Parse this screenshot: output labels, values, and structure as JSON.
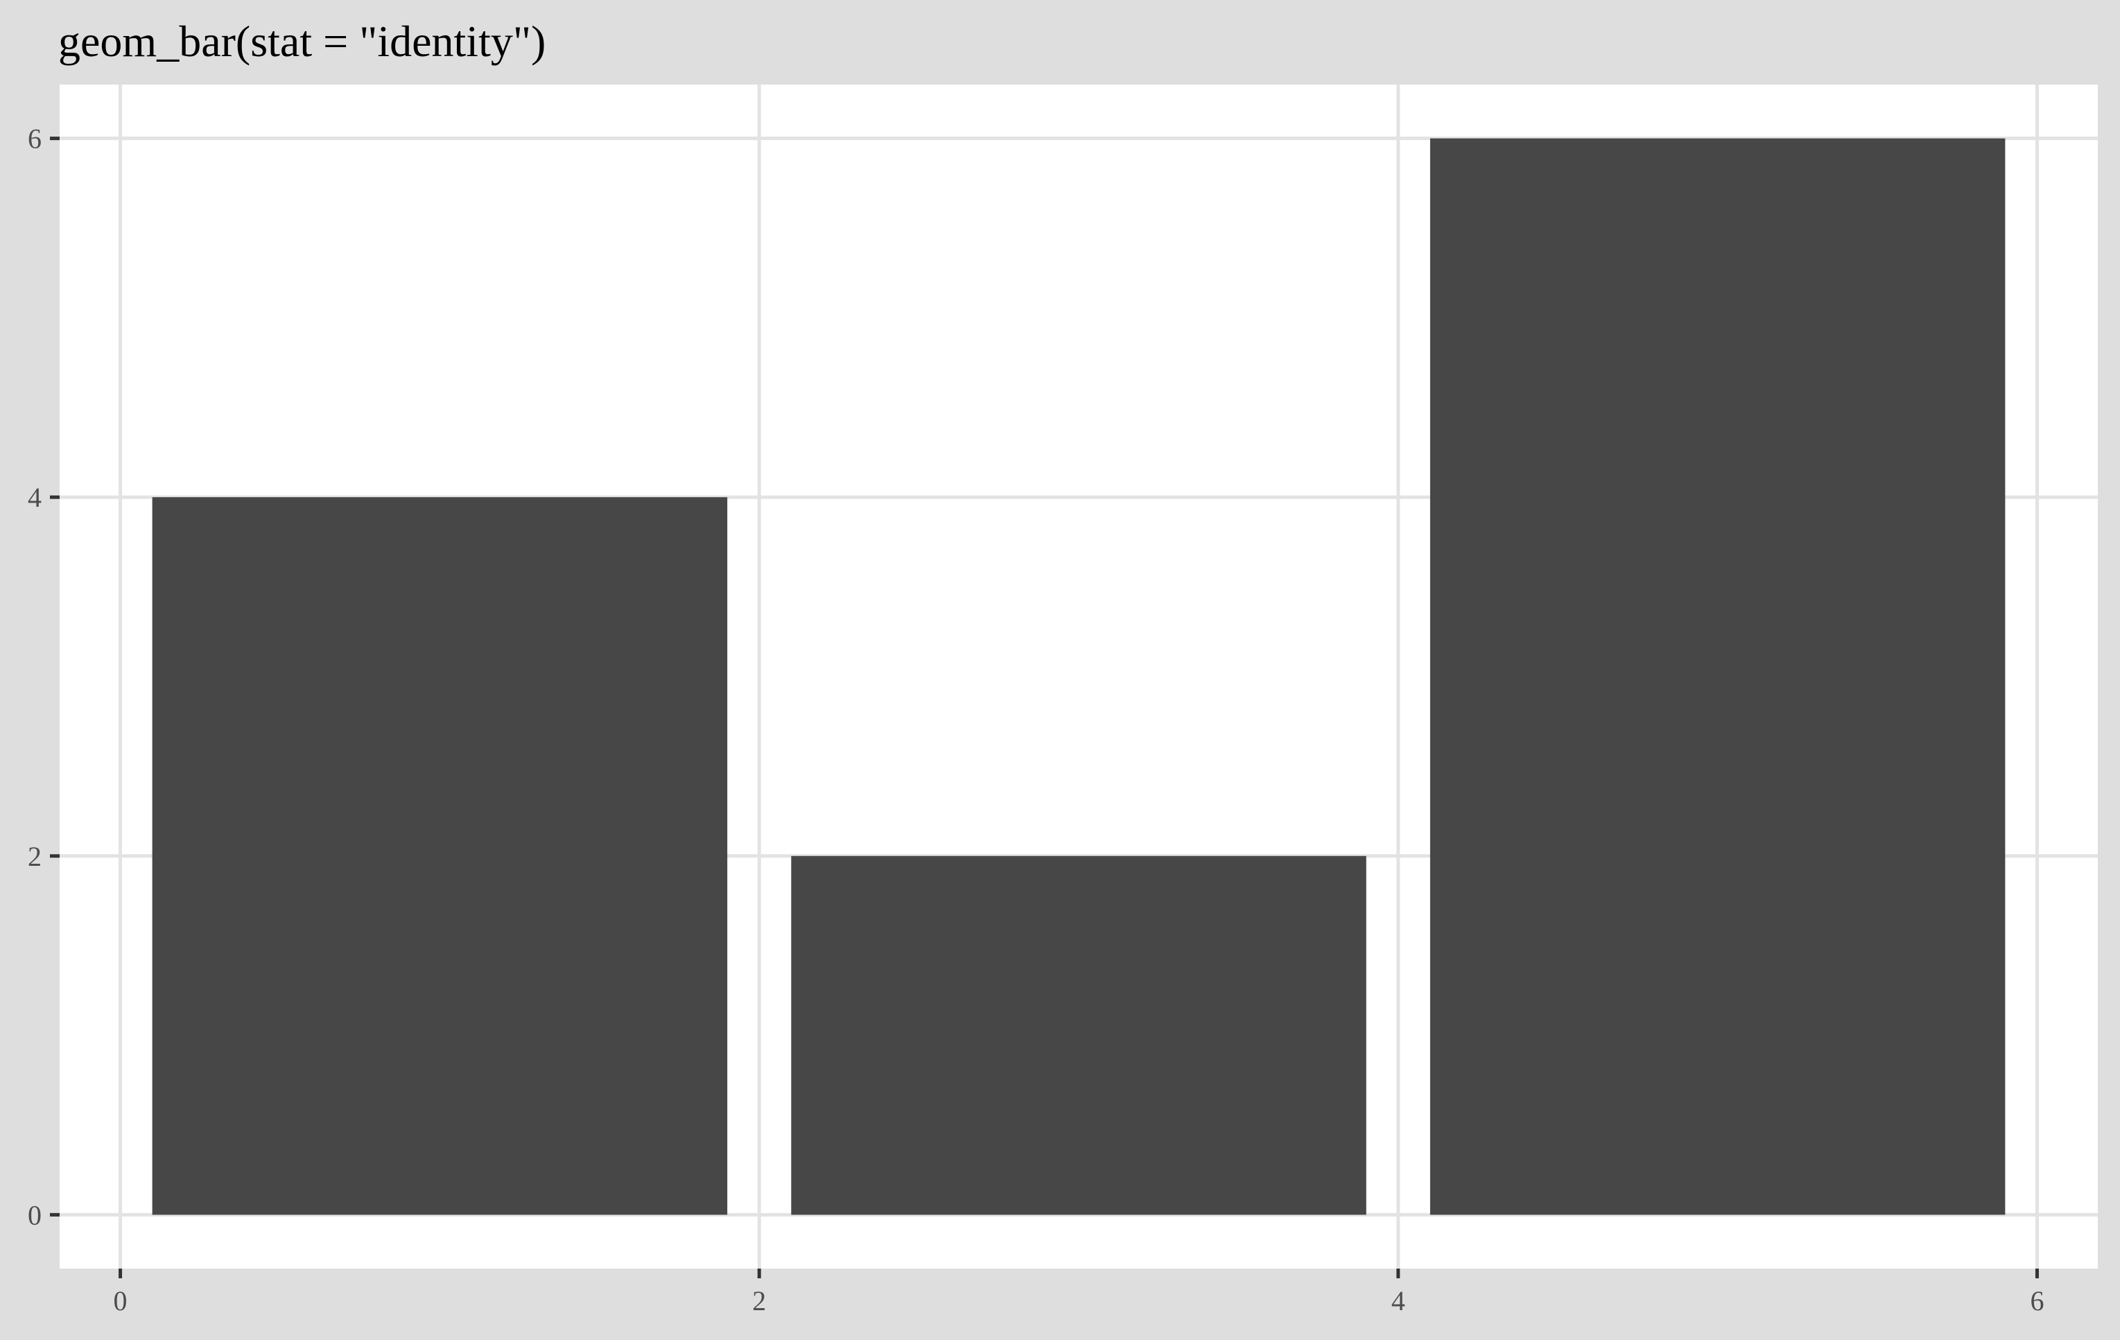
{
  "chart_data": {
    "type": "bar",
    "title": "geom_bar(stat = \"identity\")",
    "xlabel": "",
    "ylabel": "",
    "bars": [
      {
        "x": 1,
        "width": 1.8,
        "y": 4
      },
      {
        "x": 3,
        "width": 1.8,
        "y": 2
      },
      {
        "x": 5,
        "width": 1.8,
        "y": 6
      }
    ],
    "xlim": [
      -0.19,
      6.19
    ],
    "ylim": [
      -0.3,
      6.3
    ],
    "x_ticks": [
      0,
      2,
      4,
      6
    ],
    "x_tick_labels": [
      "0",
      "2",
      "4",
      "6"
    ],
    "y_ticks": [
      0,
      2,
      4,
      6
    ],
    "y_tick_labels": [
      "0",
      "2",
      "4",
      "6"
    ],
    "grid": true,
    "legend": "none",
    "colors": {
      "bar_fill": "#474747",
      "panel_background": "#ffffff",
      "plot_background": "#dedede",
      "grid_line": "#e3e3e3",
      "tick_text": "#4d4d4d"
    }
  }
}
